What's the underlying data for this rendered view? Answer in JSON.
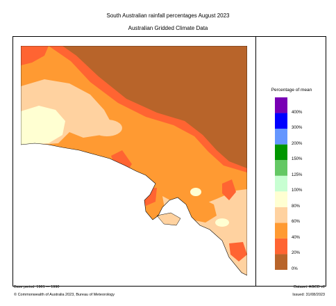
{
  "header": {
    "title": "South Australian rainfall percentages   August 2023",
    "subtitle": "Australian Gridded Climate Data"
  },
  "legend": {
    "title": "Percentage of mean",
    "bands": [
      {
        "color": "#b8642a"
      },
      {
        "color": "#ff6432"
      },
      {
        "color": "#ff9a32"
      },
      {
        "color": "#ffd2a0"
      },
      {
        "color": "#ffffd2"
      },
      {
        "color": "#c8ffd2"
      },
      {
        "color": "#64c864"
      },
      {
        "color": "#009600"
      },
      {
        "color": "#6496ff"
      },
      {
        "color": "#0000ff"
      },
      {
        "color": "#7800b4"
      }
    ],
    "labels": [
      "0%",
      "20%",
      "40%",
      "60%",
      "80%",
      "100%",
      "125%",
      "150%",
      "200%",
      "300%",
      "400%"
    ]
  },
  "map_colors": {
    "sea": "#ffffff",
    "very_much_below": "#b8642a",
    "well_below": "#ff6432",
    "below": "#ff9a32",
    "slightly_below": "#ffd2a0",
    "near_mean": "#ffffd2"
  },
  "footer": {
    "base_period": "Base period: 1961 — 1990",
    "dataset": "Dataset: AGCD v2",
    "copyright": "© Commonwealth of Australia 2023, Bureau of Meteorology",
    "issued": "Issued: 31/08/2023"
  }
}
